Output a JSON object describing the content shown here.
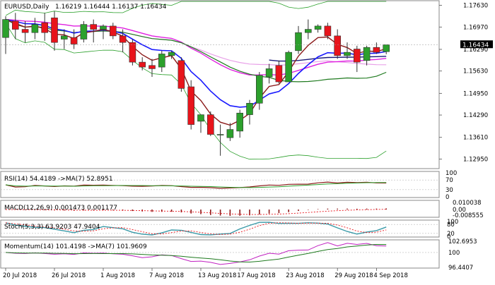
{
  "window": {
    "symbol": "EURUSD",
    "timeframe": "Daily"
  },
  "colors": {
    "bg": "#ffffff",
    "bull": "#2ca02c",
    "bear": "#e8141b",
    "ma_fast": "#8b1a1a",
    "ma_blue": "#1a1aff",
    "ma_green": "#1f7a1f",
    "ma_magenta": "#e020e0",
    "ma_pink": "#e8a0e8",
    "ma_navy": "#1a1a7a",
    "band": "#2ca02c",
    "grid": "#dddddd",
    "rsi": "#8b1a1a",
    "rsi_ma": "#2ca02c",
    "macd_hist": "#8b1a1a",
    "macd_signal": "#e8141b",
    "stoch_k": "#3a9aa8",
    "stoch_d": "#e8141b",
    "mom": "#c020c0",
    "mom_ma": "#1f7a1f",
    "price_tag_bg": "#000000",
    "price_tag_fg": "#ffffff"
  },
  "header": {
    "title": "EURUSD,Daily",
    "ohlc": "1.16219 1.16444 1.16137 1.16434"
  },
  "price_axis": {
    "ticks": [
      "1.17630",
      "1.16970",
      "1.16290",
      "1.15630",
      "1.14950",
      "1.14290",
      "1.13610",
      "1.12950"
    ],
    "current": "1.16434"
  },
  "x_axis": {
    "labels": [
      "20 Jul 2018",
      "26 Jul 2018",
      "1 Aug 2018",
      "7 Aug 2018",
      "13 Aug 2018",
      "17 Aug 2018",
      "23 Aug 2018",
      "29 Aug 2018",
      "4 Sep 2018"
    ]
  },
  "panels": {
    "rsi": {
      "label": "RSI(14) 54.4189  ->MA(7) 52.8951",
      "ticks": [
        "100",
        "70",
        "30",
        "0"
      ]
    },
    "macd": {
      "label": "MACD(12,26,9) 0.001473 0.001177",
      "ticks": [
        "0.010038",
        "0.00",
        "-0.008555"
      ]
    },
    "stoch": {
      "label": "Stoch(5,3,3) 63.9203 47.9404",
      "ticks": [
        "100",
        "80",
        "20",
        "0"
      ]
    },
    "momentum": {
      "label": "Momentum(14) 101.4198  ->MA(7) 101.9609",
      "ticks": [
        "102.6953",
        "100",
        "96.4407"
      ]
    }
  },
  "chart_data": {
    "type": "candlestick",
    "symbol": "EURUSD",
    "timeframe": "Daily",
    "ylim": [
      1.1268,
      1.1775
    ],
    "candles": [
      {
        "o": 1.1665,
        "h": 1.173,
        "l": 1.1615,
        "c": 1.172
      },
      {
        "o": 1.1715,
        "h": 1.174,
        "l": 1.166,
        "c": 1.169
      },
      {
        "o": 1.169,
        "h": 1.1715,
        "l": 1.165,
        "c": 1.168
      },
      {
        "o": 1.168,
        "h": 1.1725,
        "l": 1.166,
        "c": 1.1705
      },
      {
        "o": 1.171,
        "h": 1.174,
        "l": 1.1655,
        "c": 1.168
      },
      {
        "o": 1.1725,
        "h": 1.1745,
        "l": 1.1625,
        "c": 1.165
      },
      {
        "o": 1.166,
        "h": 1.169,
        "l": 1.163,
        "c": 1.167
      },
      {
        "o": 1.1665,
        "h": 1.169,
        "l": 1.163,
        "c": 1.1645
      },
      {
        "o": 1.166,
        "h": 1.1715,
        "l": 1.165,
        "c": 1.1705
      },
      {
        "o": 1.1705,
        "h": 1.172,
        "l": 1.165,
        "c": 1.169
      },
      {
        "o": 1.169,
        "h": 1.1705,
        "l": 1.166,
        "c": 1.17
      },
      {
        "o": 1.17,
        "h": 1.171,
        "l": 1.166,
        "c": 1.167
      },
      {
        "o": 1.167,
        "h": 1.169,
        "l": 1.162,
        "c": 1.165
      },
      {
        "o": 1.165,
        "h": 1.166,
        "l": 1.158,
        "c": 1.159
      },
      {
        "o": 1.159,
        "h": 1.1605,
        "l": 1.1565,
        "c": 1.1575
      },
      {
        "o": 1.158,
        "h": 1.16,
        "l": 1.1545,
        "c": 1.157
      },
      {
        "o": 1.1575,
        "h": 1.1625,
        "l": 1.156,
        "c": 1.1615
      },
      {
        "o": 1.161,
        "h": 1.1625,
        "l": 1.16,
        "c": 1.162
      },
      {
        "o": 1.1595,
        "h": 1.1605,
        "l": 1.15,
        "c": 1.151
      },
      {
        "o": 1.1515,
        "h": 1.1535,
        "l": 1.1385,
        "c": 1.14
      },
      {
        "o": 1.141,
        "h": 1.143,
        "l": 1.1375,
        "c": 1.143
      },
      {
        "o": 1.143,
        "h": 1.144,
        "l": 1.1365,
        "c": 1.137
      },
      {
        "o": 1.137,
        "h": 1.14,
        "l": 1.1305,
        "c": 1.137
      },
      {
        "o": 1.136,
        "h": 1.1405,
        "l": 1.135,
        "c": 1.1385
      },
      {
        "o": 1.138,
        "h": 1.1445,
        "l": 1.136,
        "c": 1.1435
      },
      {
        "o": 1.143,
        "h": 1.1475,
        "l": 1.14,
        "c": 1.1465
      },
      {
        "o": 1.1465,
        "h": 1.156,
        "l": 1.1445,
        "c": 1.155
      },
      {
        "o": 1.1545,
        "h": 1.1585,
        "l": 1.1525,
        "c": 1.157
      },
      {
        "o": 1.158,
        "h": 1.1595,
        "l": 1.1525,
        "c": 1.153
      },
      {
        "o": 1.153,
        "h": 1.1625,
        "l": 1.153,
        "c": 1.162
      },
      {
        "o": 1.1625,
        "h": 1.17,
        "l": 1.1615,
        "c": 1.168
      },
      {
        "o": 1.168,
        "h": 1.172,
        "l": 1.166,
        "c": 1.169
      },
      {
        "o": 1.169,
        "h": 1.1705,
        "l": 1.168,
        "c": 1.17
      },
      {
        "o": 1.17,
        "h": 1.171,
        "l": 1.166,
        "c": 1.167
      },
      {
        "o": 1.167,
        "h": 1.169,
        "l": 1.16,
        "c": 1.161
      },
      {
        "o": 1.161,
        "h": 1.165,
        "l": 1.16,
        "c": 1.162
      },
      {
        "o": 1.163,
        "h": 1.164,
        "l": 1.156,
        "c": 1.159
      },
      {
        "o": 1.1595,
        "h": 1.164,
        "l": 1.158,
        "c": 1.1635
      },
      {
        "o": 1.1635,
        "h": 1.165,
        "l": 1.1615,
        "c": 1.162
      },
      {
        "o": 1.1622,
        "h": 1.1644,
        "l": 1.1614,
        "c": 1.1643
      }
    ]
  }
}
